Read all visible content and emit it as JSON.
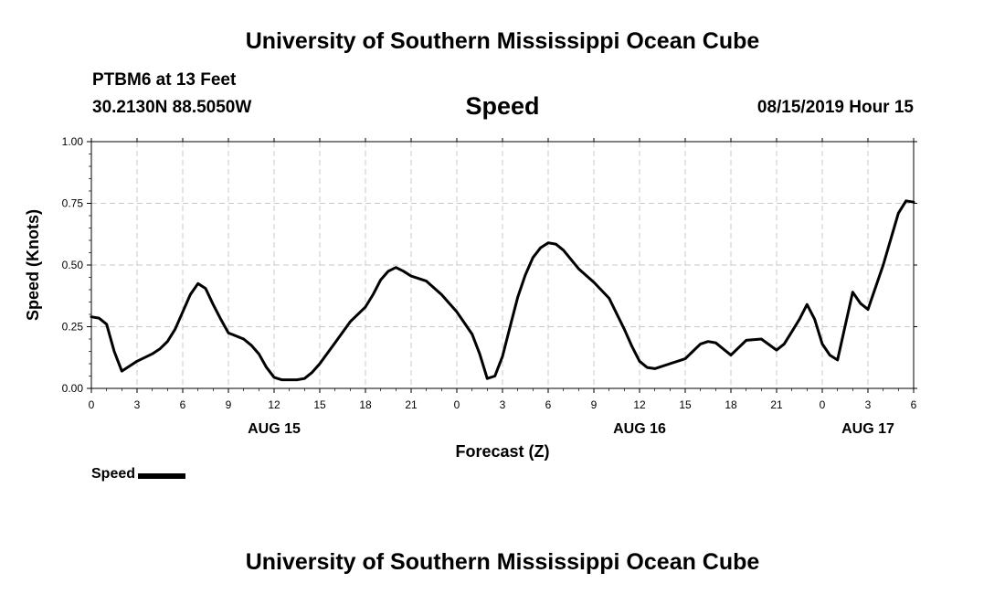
{
  "header": {
    "title": "University of Southern Mississippi Ocean Cube",
    "station": "PTBM6 at 13 Feet",
    "coordinates": "30.2130N 88.5050W",
    "variable": "Speed",
    "run_time": "08/15/2019 Hour 15"
  },
  "footer": {
    "title": "University of Southern Mississippi Ocean Cube"
  },
  "legend": {
    "label": "Speed"
  },
  "chart_data": {
    "type": "line",
    "title": "Speed",
    "xlabel": "Forecast (Z)",
    "ylabel": "Speed (Knots)",
    "ylim": [
      0,
      1
    ],
    "y_ticks": [
      "0.00",
      "0.25",
      "0.50",
      "0.75",
      "1.00"
    ],
    "xlim": [
      0,
      54
    ],
    "x_ticks": [
      {
        "x": 0,
        "label": "0"
      },
      {
        "x": 3,
        "label": "3"
      },
      {
        "x": 6,
        "label": "6"
      },
      {
        "x": 9,
        "label": "9"
      },
      {
        "x": 12,
        "label": "12"
      },
      {
        "x": 15,
        "label": "15"
      },
      {
        "x": 18,
        "label": "18"
      },
      {
        "x": 21,
        "label": "21"
      },
      {
        "x": 24,
        "label": "0"
      },
      {
        "x": 27,
        "label": "3"
      },
      {
        "x": 30,
        "label": "6"
      },
      {
        "x": 33,
        "label": "9"
      },
      {
        "x": 36,
        "label": "12"
      },
      {
        "x": 39,
        "label": "15"
      },
      {
        "x": 42,
        "label": "18"
      },
      {
        "x": 45,
        "label": "21"
      },
      {
        "x": 48,
        "label": "0"
      },
      {
        "x": 51,
        "label": "3"
      },
      {
        "x": 54,
        "label": "6"
      }
    ],
    "date_labels": [
      {
        "x": 12,
        "label": "AUG 15"
      },
      {
        "x": 36,
        "label": "AUG 16"
      },
      {
        "x": 51,
        "label": "AUG 17"
      }
    ],
    "grid": true,
    "legend_position": "bottom-left",
    "series": [
      {
        "name": "Speed",
        "color": "#000000",
        "x": [
          0,
          0.5,
          1,
          1.5,
          2,
          3,
          4,
          4.5,
          5,
          5.5,
          6,
          6.5,
          7,
          7.5,
          8,
          8.5,
          9,
          10,
          10.5,
          11,
          11.5,
          12,
          12.5,
          13,
          13.5,
          14,
          14.5,
          15,
          16,
          17,
          18,
          18.5,
          19,
          19.5,
          20,
          20.5,
          21,
          22,
          23,
          24,
          25,
          25.5,
          26,
          26.5,
          27,
          27.5,
          28,
          28.5,
          29,
          29.5,
          30,
          30.5,
          31,
          32,
          33,
          34,
          35,
          35.5,
          36,
          36.5,
          37,
          38,
          39,
          39.5,
          40,
          40.5,
          41,
          42,
          43,
          44,
          45,
          45.5,
          46,
          46.5,
          47,
          47.5,
          48,
          48.5,
          49,
          50,
          50.5,
          51,
          52,
          53,
          53.5,
          54
        ],
        "values": [
          0.29,
          0.285,
          0.26,
          0.15,
          0.07,
          0.11,
          0.14,
          0.16,
          0.19,
          0.24,
          0.31,
          0.38,
          0.425,
          0.405,
          0.34,
          0.28,
          0.225,
          0.2,
          0.175,
          0.14,
          0.085,
          0.045,
          0.035,
          0.035,
          0.035,
          0.04,
          0.065,
          0.1,
          0.185,
          0.27,
          0.33,
          0.38,
          0.44,
          0.475,
          0.49,
          0.475,
          0.455,
          0.435,
          0.38,
          0.31,
          0.22,
          0.14,
          0.04,
          0.05,
          0.13,
          0.25,
          0.37,
          0.46,
          0.53,
          0.57,
          0.59,
          0.585,
          0.56,
          0.485,
          0.43,
          0.365,
          0.24,
          0.17,
          0.11,
          0.085,
          0.08,
          0.1,
          0.12,
          0.15,
          0.18,
          0.19,
          0.185,
          0.135,
          0.195,
          0.2,
          0.155,
          0.18,
          0.23,
          0.28,
          0.34,
          0.28,
          0.18,
          0.135,
          0.115,
          0.39,
          0.345,
          0.32,
          0.5,
          0.71,
          0.76,
          0.755
        ]
      }
    ]
  }
}
